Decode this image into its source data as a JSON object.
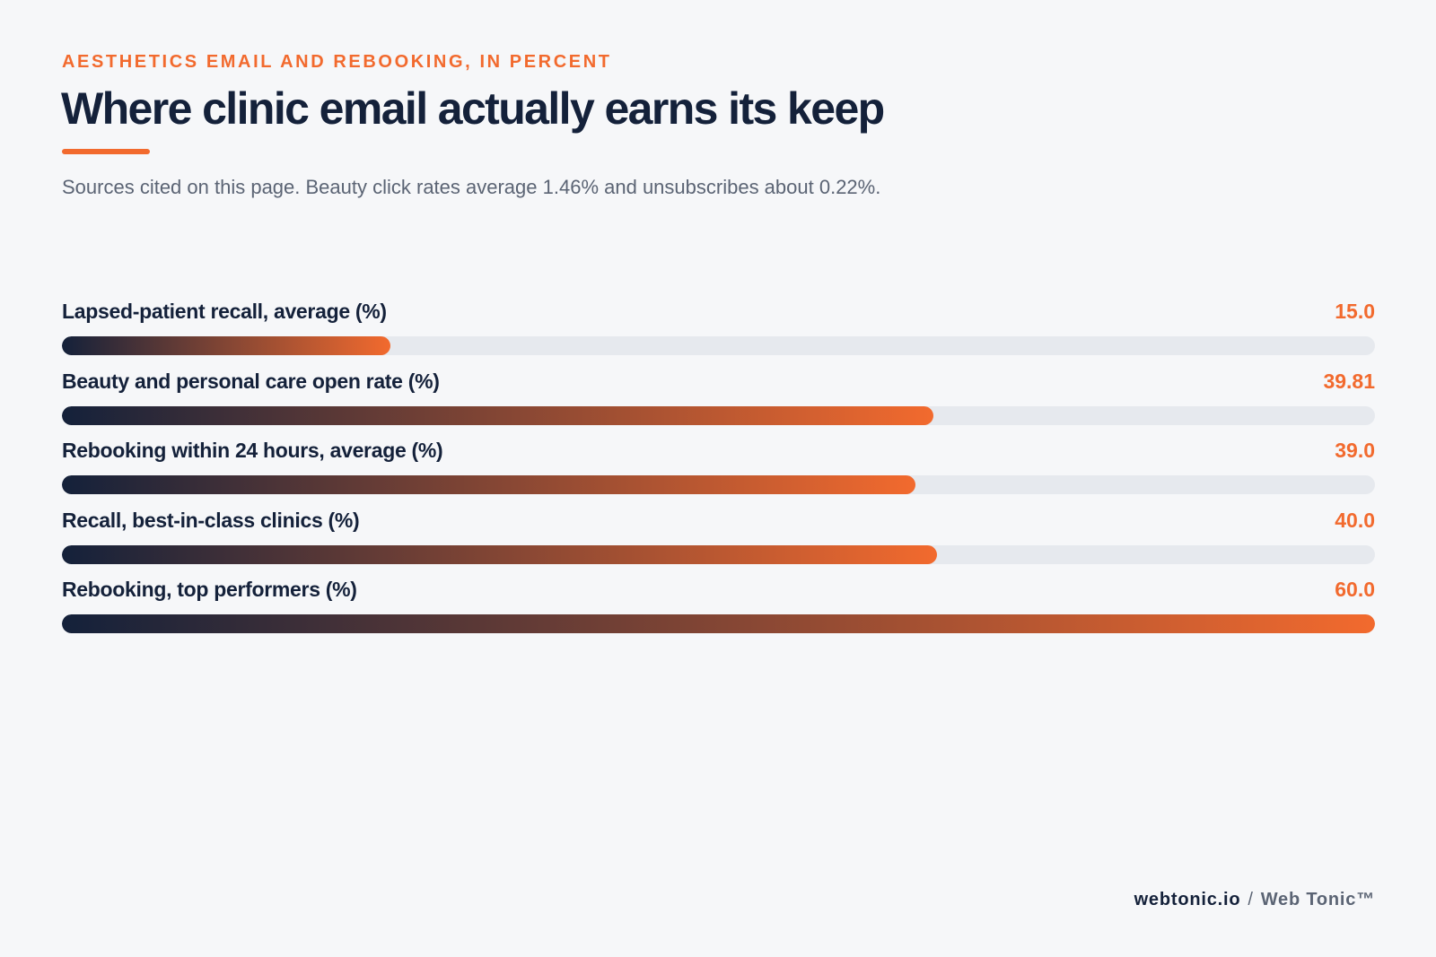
{
  "header": {
    "eyebrow": "AESTHETICS EMAIL AND REBOOKING, IN PERCENT",
    "title": "Where clinic email actually earns its keep",
    "subtitle": "Sources cited on this page. Beauty click rates average 1.46% and unsubscribes about 0.22%."
  },
  "footer": {
    "domain": "webtonic.io",
    "separator": "/",
    "brand": "Web Tonic™"
  },
  "colors": {
    "accent": "#f26a2e",
    "ink": "#14213a",
    "track": "#e6e9ee",
    "background": "#f6f7f9"
  },
  "chart_data": {
    "type": "bar",
    "orientation": "horizontal",
    "title": "Where clinic email actually earns its keep",
    "xlim": [
      0,
      60
    ],
    "grid": false,
    "categories": [
      "Lapsed-patient recall, average (%)",
      "Beauty and personal care open rate (%)",
      "Rebooking within 24 hours, average (%)",
      "Recall, best-in-class clinics (%)",
      "Rebooking, top performers (%)"
    ],
    "values": [
      15.0,
      39.81,
      39.0,
      40.0,
      60.0
    ],
    "value_labels": [
      "15.0",
      "39.81",
      "39.0",
      "40.0",
      "60.0"
    ]
  }
}
